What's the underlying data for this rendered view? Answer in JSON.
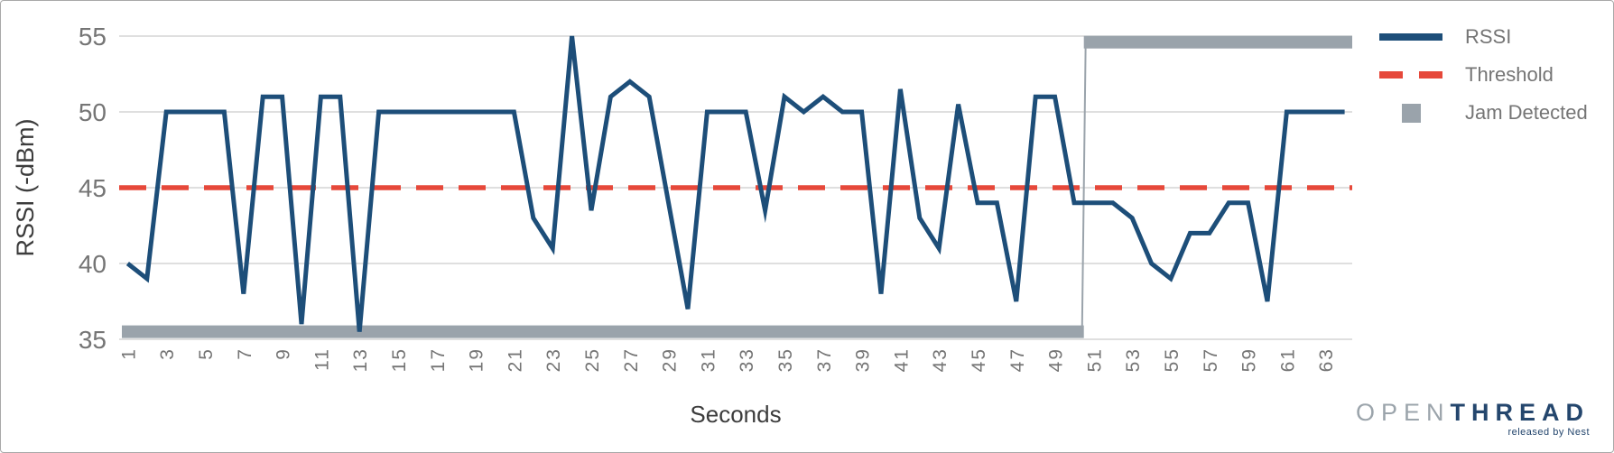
{
  "chart_data": {
    "type": "line",
    "title": "",
    "xlabel": "Seconds",
    "ylabel": "RSSI (-dBm)",
    "x_start": 1,
    "x_step": 1,
    "x_end": 64,
    "ylim": [
      35,
      55
    ],
    "y_ticks": [
      55,
      50,
      45,
      40,
      35
    ],
    "x_ticks": [
      1,
      3,
      5,
      7,
      9,
      11,
      13,
      15,
      17,
      19,
      21,
      23,
      25,
      27,
      29,
      31,
      33,
      35,
      37,
      39,
      41,
      43,
      45,
      47,
      49,
      51,
      53,
      55,
      57,
      59,
      61,
      63
    ],
    "grid": true,
    "legend_position": "right",
    "series": [
      {
        "name": "RSSI",
        "color": "#1d4e79",
        "style": "solid",
        "values": [
          40,
          39,
          50,
          50,
          50,
          50,
          38,
          51,
          51,
          36,
          51,
          51,
          35.5,
          50,
          50,
          50,
          50,
          50,
          50,
          50,
          50,
          43,
          41,
          55,
          43.5,
          51,
          52,
          51,
          44,
          37,
          50,
          50,
          50,
          43.5,
          51,
          50,
          51,
          50,
          50,
          38,
          51.5,
          43,
          41,
          50.5,
          44,
          44,
          37.5,
          51,
          51,
          44,
          44,
          44,
          43,
          40,
          39,
          42,
          42,
          44,
          44,
          37.5,
          50,
          50,
          50,
          50
        ]
      },
      {
        "name": "Threshold",
        "color": "#e6483a",
        "style": "dashed",
        "constant_value": 45
      },
      {
        "name": "Jam Detected",
        "color": "#9aa3ab",
        "style": "band",
        "false_level": 35.5,
        "true_level": 54.6,
        "jam_false_from": 1,
        "jam_true_after": 50,
        "jam_true_to": 64.5
      }
    ]
  },
  "axes": {
    "y_title": "RSSI (-dBm)",
    "x_title": "Seconds"
  },
  "legend": {
    "items": [
      {
        "label": "RSSI",
        "swatch": "line",
        "color": "#1d4e79"
      },
      {
        "label": "Threshold",
        "swatch": "dashes",
        "color": "#e6483a"
      },
      {
        "label": "Jam Detected",
        "swatch": "square",
        "color": "#9aa3ab"
      }
    ]
  },
  "logo": {
    "part1": "OPEN",
    "part2": "THREAD",
    "tagline": "released by Nest"
  },
  "colors": {
    "rssi_line": "#1d4e79",
    "threshold_line": "#e6483a",
    "jam_bar": "#9aa3ab",
    "gridline": "#cccccc",
    "axis_tick_text": "#757575",
    "axis_title_text": "#3c3c3c",
    "frame_border": "#a8a8a8"
  }
}
